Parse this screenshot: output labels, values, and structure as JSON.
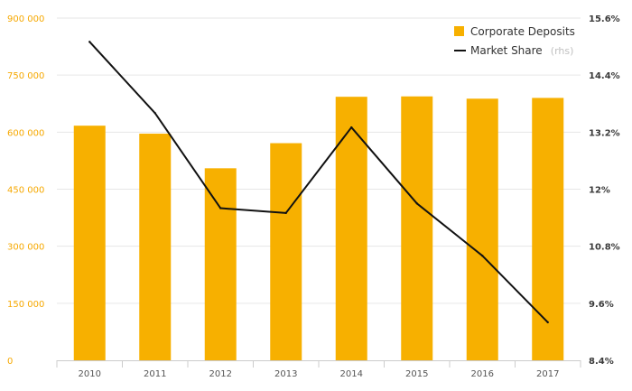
{
  "chart_data": {
    "type": "bar",
    "categories": [
      "2010",
      "2011",
      "2012",
      "2013",
      "2014",
      "2015",
      "2016",
      "2017"
    ],
    "series": [
      {
        "name": "Corporate Deposits",
        "type": "bar",
        "axis": "left",
        "color": "#f7b000",
        "values": [
          617000,
          596000,
          505000,
          571000,
          693000,
          694000,
          688000,
          690000
        ]
      },
      {
        "name": "Market Share",
        "legend_suffix": "(rhs)",
        "type": "line",
        "axis": "right",
        "color": "#111111",
        "values": [
          15.1,
          13.6,
          11.6,
          11.5,
          13.3,
          11.7,
          10.6,
          9.2
        ]
      }
    ],
    "y_left": {
      "ylim": [
        0,
        900000
      ],
      "tick_labels": [
        "0",
        "150 000",
        "300 000",
        "450 000",
        "600 000",
        "750 000",
        "900 000"
      ]
    },
    "y_right": {
      "ylim": [
        8.4,
        15.6
      ],
      "tick_labels": [
        "8.4%",
        "9.6%",
        "10.8%",
        "12%",
        "13.2%",
        "14.4%",
        "15.6%"
      ]
    },
    "grid": true,
    "legend_position": "top-right"
  }
}
